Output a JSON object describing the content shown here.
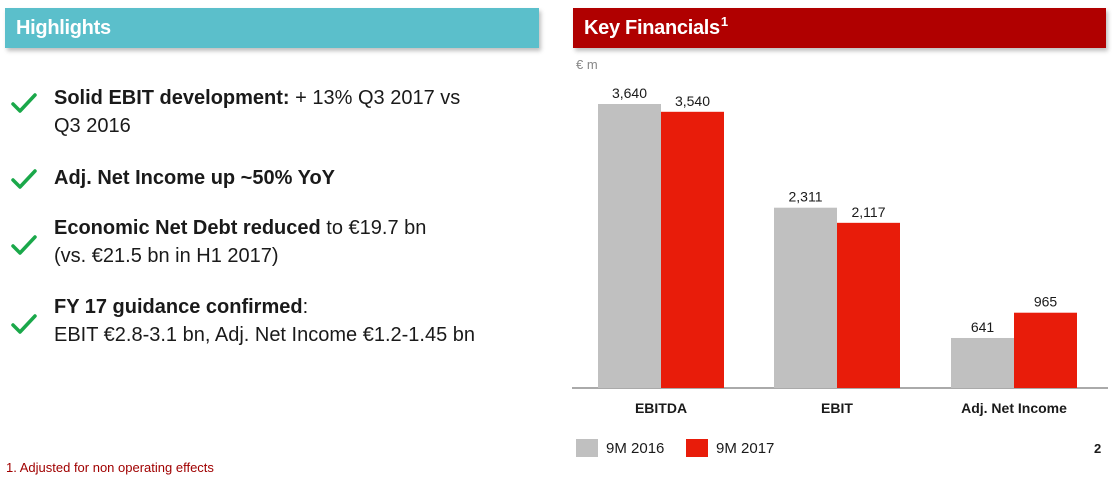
{
  "left_panel": {
    "title": "Highlights",
    "bullets": [
      {
        "bold": "Solid EBIT development:",
        "text_line1": "  + 13%  Q3 2017 vs",
        "text_line2": "Q3 2016"
      },
      {
        "bold": "Adj. Net Income up ~50% YoY",
        "text_line1": "",
        "text_line2": ""
      },
      {
        "bold": "Economic Net Debt reduced",
        "text_line1": " to €19.7 bn",
        "text_line2": "(vs. €21.5 bn in H1 2017)"
      },
      {
        "bold": "FY 17 guidance confirmed",
        "text_line1": ":",
        "text_line2": "EBIT €2.8-3.1 bn, Adj. Net Income €1.2-1.45 bn"
      }
    ],
    "check_color": "#1aa84a",
    "check_icon": "checkmark-icon"
  },
  "right_panel": {
    "title": "Key Financials",
    "title_superscript": "1",
    "unit_label": "€ m"
  },
  "footnote": "1. Adjusted for non operating effects",
  "page_number": "2",
  "colors": {
    "highlights_banner": "#5bbfcb",
    "financials_banner": "#b00000",
    "series_2016": "#c0c0c0",
    "series_2017": "#e81c0a",
    "footnote": "#a00000"
  },
  "chart_data": {
    "type": "bar",
    "categories": [
      "EBITDA",
      "EBIT",
      "Adj. Net Income"
    ],
    "series": [
      {
        "name": "9M 2016",
        "values": [
          3640,
          2311,
          641
        ],
        "labels": [
          "3,640",
          "2,311",
          "641"
        ]
      },
      {
        "name": "9M 2017",
        "values": [
          3540,
          2117,
          965
        ],
        "labels": [
          "3,540",
          "2,117",
          "965"
        ]
      }
    ],
    "title": "Key Financials",
    "ylabel": "€ m",
    "ylim": [
      0,
      3640
    ],
    "legend_position": "bottom-left",
    "grid": false
  }
}
